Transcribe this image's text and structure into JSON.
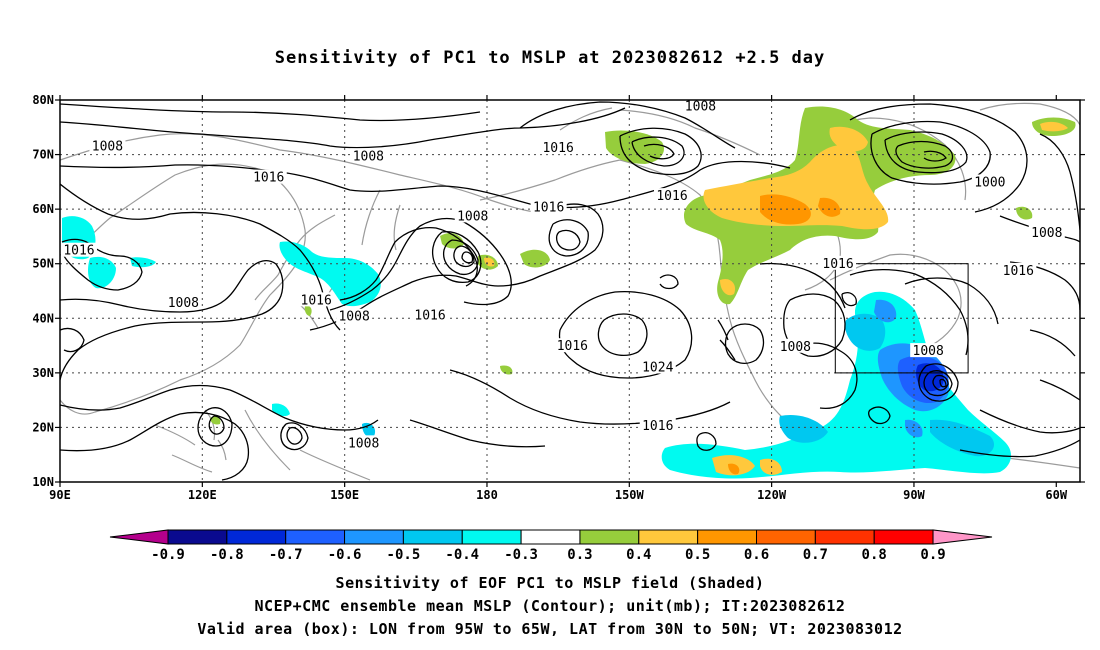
{
  "title": "Sensitivity of PC1 to MSLP at 2023082612 +2.5 day",
  "map": {
    "lon_range": [
      90,
      305
    ],
    "lat_range": [
      10,
      80
    ],
    "lon_ticks": [
      {
        "lon": 90,
        "label": "90E"
      },
      {
        "lon": 120,
        "label": "120E"
      },
      {
        "lon": 150,
        "label": "150E"
      },
      {
        "lon": 180,
        "label": "180"
      },
      {
        "lon": 210,
        "label": "150W"
      },
      {
        "lon": 240,
        "label": "120W"
      },
      {
        "lon": 270,
        "label": "90W"
      },
      {
        "lon": 300,
        "label": "60W"
      }
    ],
    "lat_ticks": [
      {
        "lat": 80,
        "label": "80N"
      },
      {
        "lat": 70,
        "label": "70N"
      },
      {
        "lat": 60,
        "label": "60N"
      },
      {
        "lat": 50,
        "label": "50N"
      },
      {
        "lat": 40,
        "label": "40N"
      },
      {
        "lat": 30,
        "label": "30N"
      },
      {
        "lat": 20,
        "label": "20N"
      },
      {
        "lat": 10,
        "label": "10N"
      }
    ],
    "grid": "dotted",
    "valid_box": {
      "lon_min": 265,
      "lon_max": 295,
      "lat_min": 30,
      "lat_max": 50
    },
    "contour_labels": [
      {
        "text": "1008",
        "lon": 100,
        "lat": 71.3
      },
      {
        "text": "1008",
        "lon": 155,
        "lat": 69.5
      },
      {
        "text": "1008",
        "lon": 225,
        "lat": 78.6
      },
      {
        "text": "1016",
        "lon": 195,
        "lat": 71
      },
      {
        "text": "1016",
        "lon": 134,
        "lat": 65.6
      },
      {
        "text": "1016",
        "lon": 193,
        "lat": 60.1
      },
      {
        "text": "1016",
        "lon": 219,
        "lat": 62.2
      },
      {
        "text": "1008",
        "lon": 177,
        "lat": 58.5
      },
      {
        "text": "1000",
        "lon": 286,
        "lat": 64.7
      },
      {
        "text": "1008",
        "lon": 298,
        "lat": 55.4
      },
      {
        "text": "1016",
        "lon": 94,
        "lat": 52.2
      },
      {
        "text": "1016",
        "lon": 254,
        "lat": 49.8
      },
      {
        "text": "1016",
        "lon": 292,
        "lat": 48.5
      },
      {
        "text": "1008",
        "lon": 116,
        "lat": 42.6
      },
      {
        "text": "1016",
        "lon": 144,
        "lat": 43.1
      },
      {
        "text": "1008",
        "lon": 152,
        "lat": 40.1
      },
      {
        "text": "1016",
        "lon": 168,
        "lat": 40.3
      },
      {
        "text": "1016",
        "lon": 198,
        "lat": 34.7
      },
      {
        "text": "1024",
        "lon": 216,
        "lat": 30.8
      },
      {
        "text": "1008",
        "lon": 245,
        "lat": 34.6
      },
      {
        "text": "1008",
        "lon": 273,
        "lat": 33.8
      },
      {
        "text": "1016",
        "lon": 216,
        "lat": 20.1
      },
      {
        "text": "1008",
        "lon": 154,
        "lat": 16.9
      }
    ]
  },
  "colorbar": {
    "labels": [
      "-0.9",
      "-0.8",
      "-0.7",
      "-0.6",
      "-0.5",
      "-0.4",
      "-0.3",
      "0.3",
      "0.4",
      "0.5",
      "0.6",
      "0.7",
      "0.8",
      "0.9"
    ],
    "colors": [
      "#0a0a8f",
      "#0028d8",
      "#1e60ff",
      "#1e96ff",
      "#00c8f0",
      "#00faf0",
      "#ffffff",
      "#96cd3c",
      "#ffc83c",
      "#ff9600",
      "#ff6400",
      "#ff3200",
      "#ff0000"
    ],
    "end_low_color": "#b4008c",
    "end_high_color": "#ff96c8"
  },
  "captions": [
    "Sensitivity of EOF PC1 to MSLP field (Shaded)",
    "NCEP+CMC ensemble mean MSLP (Contour); unit(mb); IT:2023082612",
    "Valid area (box): LON from 95W to 65W, LAT from 30N to 50N; VT: 2023083012"
  ]
}
